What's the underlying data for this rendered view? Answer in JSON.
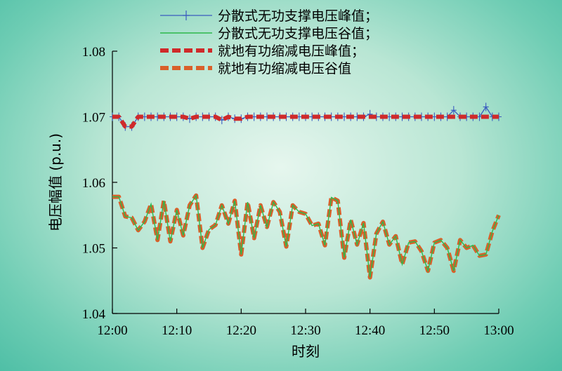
{
  "chart_data": {
    "type": "line",
    "xlabel": "时刻",
    "ylabel": "电压幅值 (p.u.)",
    "xlim": [
      0,
      60
    ],
    "ylim": [
      1.04,
      1.08
    ],
    "x_ticks": [
      0,
      10,
      20,
      30,
      40,
      50,
      60
    ],
    "x_tick_labels": [
      "12:00",
      "12:10",
      "12:20",
      "12:30",
      "12:40",
      "12:50",
      "13:00"
    ],
    "y_ticks": [
      1.04,
      1.05,
      1.06,
      1.07,
      1.08
    ],
    "y_tick_labels": [
      "1.04",
      "1.05",
      "1.06",
      "1.07",
      "1.08"
    ],
    "legend_position": "top",
    "series": [
      {
        "name": "分散式无功支撑电压峰值；",
        "color": "#3a5bbf",
        "style": "solid-plus",
        "x": [
          0,
          1,
          2,
          3,
          4,
          5,
          6,
          7,
          8,
          9,
          10,
          11,
          12,
          13,
          14,
          15,
          16,
          17,
          18,
          19,
          20,
          21,
          22,
          23,
          24,
          25,
          26,
          27,
          28,
          29,
          30,
          31,
          32,
          33,
          34,
          35,
          36,
          37,
          38,
          39,
          40,
          41,
          42,
          43,
          44,
          45,
          46,
          47,
          48,
          49,
          50,
          51,
          52,
          53,
          54,
          55,
          56,
          57,
          58,
          59,
          60
        ],
        "values": [
          1.07,
          1.07,
          1.0685,
          1.0685,
          1.07,
          1.07,
          1.07,
          1.07,
          1.07,
          1.07,
          1.07,
          1.07,
          1.0697,
          1.07,
          1.07,
          1.07,
          1.07,
          1.0695,
          1.07,
          1.0697,
          1.0697,
          1.07,
          1.07,
          1.07,
          1.07,
          1.07,
          1.07,
          1.07,
          1.07,
          1.07,
          1.07,
          1.07,
          1.07,
          1.07,
          1.07,
          1.07,
          1.07,
          1.07,
          1.07,
          1.07,
          1.0704,
          1.07,
          1.07,
          1.07,
          1.07,
          1.07,
          1.07,
          1.07,
          1.07,
          1.07,
          1.07,
          1.07,
          1.07,
          1.071,
          1.07,
          1.07,
          1.07,
          1.07,
          1.0715,
          1.07,
          1.07
        ]
      },
      {
        "name": "分散式无功支撑电压谷值；",
        "color": "#2db84a",
        "style": "solid",
        "x": [
          0,
          1,
          2,
          3,
          4,
          5,
          6,
          7,
          8,
          9,
          10,
          11,
          12,
          13,
          14,
          15,
          16,
          17,
          18,
          19,
          20,
          21,
          22,
          23,
          24,
          25,
          26,
          27,
          28,
          29,
          30,
          31,
          32,
          33,
          34,
          35,
          36,
          37,
          38,
          39,
          40,
          41,
          42,
          43,
          44,
          45,
          46,
          47,
          48,
          49,
          50,
          51,
          52,
          53,
          54,
          55,
          56,
          57,
          58,
          59,
          60
        ],
        "values": [
          1.0578,
          1.0578,
          1.0548,
          1.0546,
          1.0527,
          1.054,
          1.0567,
          1.0512,
          1.0572,
          1.051,
          1.0558,
          1.0519,
          1.0565,
          1.058,
          1.05,
          1.0528,
          1.0535,
          1.0565,
          1.0537,
          1.0572,
          1.049,
          1.057,
          1.0515,
          1.0565,
          1.0532,
          1.057,
          1.0555,
          1.0502,
          1.0565,
          1.0555,
          1.0552,
          1.0534,
          1.0537,
          1.0504,
          1.0577,
          1.0572,
          1.0485,
          1.0543,
          1.0505,
          1.0538,
          1.0455,
          1.0522,
          1.054,
          1.0505,
          1.0518,
          1.0475,
          1.0508,
          1.051,
          1.0495,
          1.0465,
          1.0508,
          1.0512,
          1.05,
          1.0465,
          1.0512,
          1.05,
          1.0504,
          1.0488,
          1.049,
          1.0525,
          1.055
        ]
      },
      {
        "name": "就地有功缩减电压峰值；",
        "color": "#cf2a2a",
        "style": "dashed",
        "x": [
          0,
          1,
          2,
          3,
          4,
          5,
          6,
          7,
          8,
          9,
          10,
          11,
          12,
          13,
          14,
          15,
          16,
          17,
          18,
          19,
          20,
          21,
          22,
          23,
          24,
          25,
          26,
          27,
          28,
          29,
          30,
          31,
          32,
          33,
          34,
          35,
          36,
          37,
          38,
          39,
          40,
          41,
          42,
          43,
          44,
          45,
          46,
          47,
          48,
          49,
          50,
          51,
          52,
          53,
          54,
          55,
          56,
          57,
          58,
          59,
          60
        ],
        "values": [
          1.07,
          1.07,
          1.0685,
          1.0685,
          1.07,
          1.07,
          1.07,
          1.07,
          1.07,
          1.07,
          1.07,
          1.07,
          1.0697,
          1.07,
          1.07,
          1.07,
          1.07,
          1.0695,
          1.07,
          1.0697,
          1.0697,
          1.07,
          1.07,
          1.07,
          1.07,
          1.07,
          1.07,
          1.07,
          1.07,
          1.07,
          1.07,
          1.07,
          1.07,
          1.07,
          1.07,
          1.07,
          1.07,
          1.07,
          1.07,
          1.07,
          1.07,
          1.07,
          1.07,
          1.07,
          1.07,
          1.07,
          1.07,
          1.07,
          1.07,
          1.07,
          1.07,
          1.07,
          1.07,
          1.07,
          1.07,
          1.07,
          1.07,
          1.07,
          1.07,
          1.07,
          1.07
        ]
      },
      {
        "name": "就地有功缩减电压谷值",
        "color": "#d9602a",
        "style": "dashed",
        "x": [
          0,
          1,
          2,
          3,
          4,
          5,
          6,
          7,
          8,
          9,
          10,
          11,
          12,
          13,
          14,
          15,
          16,
          17,
          18,
          19,
          20,
          21,
          22,
          23,
          24,
          25,
          26,
          27,
          28,
          29,
          30,
          31,
          32,
          33,
          34,
          35,
          36,
          37,
          38,
          39,
          40,
          41,
          42,
          43,
          44,
          45,
          46,
          47,
          48,
          49,
          50,
          51,
          52,
          53,
          54,
          55,
          56,
          57,
          58,
          59,
          60
        ],
        "values": [
          1.0578,
          1.0578,
          1.0548,
          1.0546,
          1.0527,
          1.054,
          1.0567,
          1.0512,
          1.0572,
          1.051,
          1.0558,
          1.0519,
          1.0565,
          1.058,
          1.05,
          1.0528,
          1.0535,
          1.0565,
          1.0537,
          1.0572,
          1.049,
          1.057,
          1.0515,
          1.0565,
          1.0532,
          1.057,
          1.0555,
          1.0502,
          1.0565,
          1.0555,
          1.0552,
          1.0534,
          1.0537,
          1.0504,
          1.0577,
          1.0572,
          1.0485,
          1.0543,
          1.0505,
          1.0538,
          1.0455,
          1.0522,
          1.054,
          1.0505,
          1.0518,
          1.0475,
          1.0508,
          1.051,
          1.0495,
          1.0465,
          1.0508,
          1.0512,
          1.05,
          1.0465,
          1.0512,
          1.05,
          1.0504,
          1.0488,
          1.049,
          1.0525,
          1.055
        ]
      }
    ]
  }
}
